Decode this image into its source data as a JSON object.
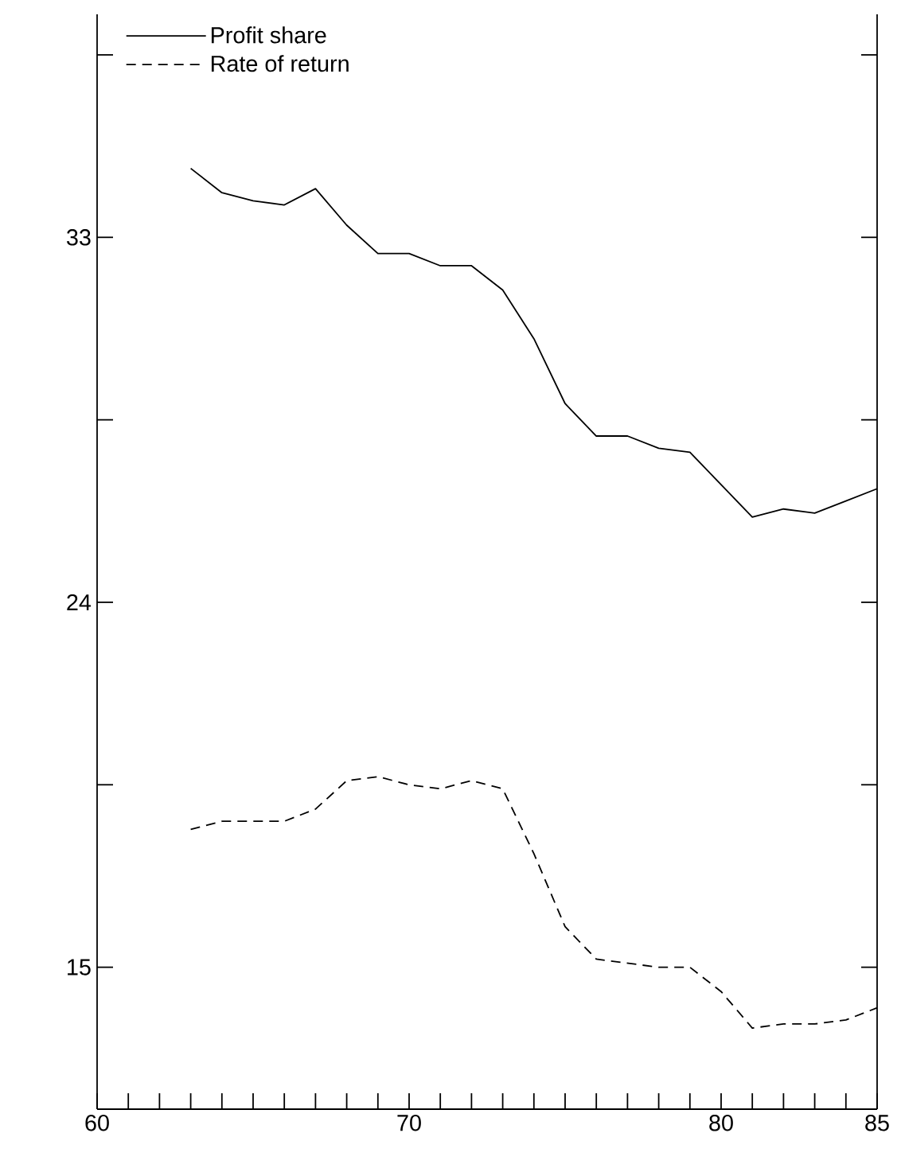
{
  "chart_data": {
    "type": "line",
    "x": [
      63,
      64,
      65,
      66,
      67,
      68,
      69,
      70,
      71,
      72,
      73,
      74,
      75,
      76,
      77,
      78,
      79,
      80,
      81,
      82,
      83,
      84,
      85
    ],
    "series": [
      {
        "name": "Profit share",
        "color": "#000000",
        "line_style": "solid",
        "values": [
          34.7,
          34.1,
          33.9,
          33.8,
          34.2,
          33.3,
          32.6,
          32.6,
          32.3,
          32.3,
          31.7,
          30.5,
          28.9,
          28.1,
          28.1,
          27.8,
          27.7,
          26.9,
          26.1,
          26.3,
          26.2,
          26.5,
          26.8
        ]
      },
      {
        "name": "Rate of return",
        "color": "#000000",
        "line_style": "dashed",
        "values": [
          18.4,
          18.6,
          18.6,
          18.6,
          18.9,
          19.6,
          19.7,
          19.5,
          19.4,
          19.6,
          19.4,
          17.8,
          16.0,
          15.2,
          15.1,
          15.0,
          15.0,
          14.4,
          13.5,
          13.6,
          13.6,
          13.7,
          14.0
        ]
      }
    ],
    "xlim": [
      60,
      85
    ],
    "ylim": [
      11.5,
      38.5
    ],
    "xticks": [
      60,
      {
        "value": 61,
        "label": null
      },
      {
        "value": 62,
        "label": null
      },
      {
        "value": 63,
        "label": null
      },
      {
        "value": 64,
        "label": null
      },
      {
        "value": 65,
        "label": null
      },
      {
        "value": 66,
        "label": null
      },
      {
        "value": 67,
        "label": null
      },
      {
        "value": 68,
        "label": null
      },
      {
        "value": 69,
        "label": null
      },
      70,
      {
        "value": 71,
        "label": null
      },
      {
        "value": 72,
        "label": null
      },
      {
        "value": 73,
        "label": null
      },
      {
        "value": 74,
        "label": null
      },
      {
        "value": 75,
        "label": null
      },
      {
        "value": 76,
        "label": null
      },
      {
        "value": 77,
        "label": null
      },
      {
        "value": 78,
        "label": null
      },
      {
        "value": 79,
        "label": null
      },
      80,
      {
        "value": 81,
        "label": null
      },
      {
        "value": 82,
        "label": null
      },
      {
        "value": 83,
        "label": null
      },
      {
        "value": 84,
        "label": null
      },
      85
    ],
    "yticks": [
      15,
      {
        "value": 19.5,
        "label": null
      },
      24,
      {
        "value": 28.5,
        "label": null
      },
      33,
      {
        "value": 37.5,
        "label": null
      }
    ],
    "legend": "top left",
    "grid": false,
    "marker": "none"
  }
}
